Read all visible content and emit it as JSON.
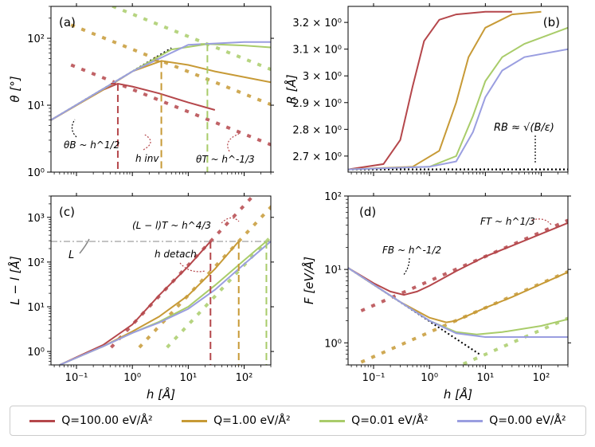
{
  "colors": {
    "q100": "#b5474b",
    "q1": "#c79a36",
    "q001": "#a9cc6a",
    "q0": "#9a9ee0"
  },
  "legend": [
    {
      "label": "Q=100.00 eV/Å²",
      "color": "#b5474b"
    },
    {
      "label": "Q=1.00 eV/Å²",
      "color": "#c79a36"
    },
    {
      "label": "Q=0.01 eV/Å²",
      "color": "#a9cc6a"
    },
    {
      "label": "Q=0.00 eV/Å²",
      "color": "#9a9ee0"
    }
  ],
  "shared": {
    "xlabel": "h [Å]"
  },
  "chart_data": [
    {
      "panel": "a",
      "type": "line",
      "label": "(a)",
      "xscale": "log",
      "yscale": "log",
      "xlim": [
        0.035,
        300
      ],
      "ylim": [
        1,
        300
      ],
      "ylabel": "θ [°]",
      "yticks": [
        "10⁰",
        "10¹",
        "10²"
      ],
      "annotations": [
        "θB ~ h^1/2",
        "h inv",
        "θT ~ h^-1/3"
      ],
      "series": [
        {
          "name": "Q=100.00",
          "x": [
            0.035,
            0.1,
            0.3,
            0.55,
            1,
            3,
            10,
            30
          ],
          "y": [
            6,
            10,
            17,
            21,
            19,
            15,
            11,
            8.5
          ]
        },
        {
          "name": "Q=1.00",
          "x": [
            0.035,
            0.3,
            1,
            3.3,
            10,
            30,
            300
          ],
          "y": [
            6,
            17,
            32,
            46,
            40,
            32,
            22
          ]
        },
        {
          "name": "Q=0.01",
          "x": [
            0.035,
            1,
            5,
            22,
            100,
            300
          ],
          "y": [
            6,
            32,
            68,
            82,
            78,
            73
          ]
        },
        {
          "name": "Q=0.00",
          "x": [
            0.035,
            1,
            10,
            100,
            300
          ],
          "y": [
            6,
            32,
            80,
            88,
            88
          ]
        }
      ],
      "dashed_markers_x": [
        0.55,
        3.3,
        22
      ]
    },
    {
      "panel": "b",
      "type": "line",
      "label": "(b)",
      "xscale": "log",
      "yscale": "linear",
      "xlim": [
        0.035,
        300
      ],
      "ylim": [
        2.64,
        3.26
      ],
      "ylabel": "R [Å]",
      "yticks": [
        "2.7 × 10⁰",
        "2.8 × 10⁰",
        "2.9 × 10⁰",
        "3 × 10⁰",
        "3.1 × 10⁰",
        "3.2 × 10⁰"
      ],
      "annotations": [
        "RB ≈ √(B/ε)"
      ],
      "series": [
        {
          "name": "Q=100.00",
          "x": [
            0.035,
            0.15,
            0.3,
            0.5,
            0.8,
            1.5,
            3,
            10,
            30
          ],
          "y": [
            2.65,
            2.67,
            2.76,
            2.96,
            3.13,
            3.21,
            3.23,
            3.24,
            3.24
          ]
        },
        {
          "name": "Q=1.00",
          "x": [
            0.035,
            0.5,
            1.5,
            3,
            5,
            10,
            30,
            100
          ],
          "y": [
            2.65,
            2.66,
            2.72,
            2.9,
            3.07,
            3.18,
            3.23,
            3.24
          ]
        },
        {
          "name": "Q=0.01",
          "x": [
            0.035,
            1,
            3,
            6,
            10,
            20,
            50,
            300
          ],
          "y": [
            2.65,
            2.66,
            2.7,
            2.85,
            2.98,
            3.07,
            3.12,
            3.18
          ]
        },
        {
          "name": "Q=0.00",
          "x": [
            0.035,
            1,
            3,
            6,
            10,
            20,
            50,
            300
          ],
          "y": [
            2.65,
            2.66,
            2.68,
            2.79,
            2.92,
            3.02,
            3.07,
            3.1
          ]
        }
      ]
    },
    {
      "panel": "c",
      "type": "line",
      "label": "(c)",
      "xscale": "log",
      "yscale": "log",
      "xlim": [
        0.035,
        300
      ],
      "ylim": [
        0.5,
        3000
      ],
      "ylabel": "L − l [Å]",
      "yticks": [
        "10⁰",
        "10¹",
        "10²",
        "10³"
      ],
      "annotations": [
        "(L − l)T ~ h^4/3",
        "h detach",
        "L"
      ],
      "series": [
        {
          "name": "Q=100.00",
          "x": [
            0.05,
            0.3,
            1,
            3,
            10,
            25
          ],
          "y": [
            0.5,
            1.4,
            4,
            18,
            80,
            290
          ]
        },
        {
          "name": "Q=1.00",
          "x": [
            0.05,
            0.3,
            1,
            3,
            10,
            30,
            80
          ],
          "y": [
            0.5,
            1.3,
            2.8,
            6,
            18,
            70,
            290
          ]
        },
        {
          "name": "Q=0.01",
          "x": [
            0.05,
            0.3,
            1,
            3,
            10,
            30,
            100,
            250
          ],
          "y": [
            0.5,
            1.3,
            2.6,
            4.6,
            10,
            30,
            110,
            290
          ]
        },
        {
          "name": "Q=0.00",
          "x": [
            0.05,
            0.3,
            1,
            3,
            10,
            30,
            100,
            300
          ],
          "y": [
            0.5,
            1.3,
            2.6,
            4.4,
            9,
            24,
            90,
            290
          ]
        }
      ],
      "hline_L": 290,
      "dashed_markers_x": [
        25,
        80,
        250
      ]
    },
    {
      "panel": "d",
      "type": "line",
      "label": "(d)",
      "xscale": "log",
      "yscale": "log",
      "xlim": [
        0.035,
        300
      ],
      "ylim": [
        0.5,
        100
      ],
      "ylabel": "F [eV/Å]",
      "yticks": [
        "10⁰",
        "10¹",
        "10²"
      ],
      "annotations": [
        "FT ~ h^1/3",
        "FB ~ h^-1/2"
      ],
      "series": [
        {
          "name": "Q=100.00",
          "x": [
            0.035,
            0.1,
            0.2,
            0.35,
            0.6,
            1,
            3,
            10,
            30,
            300
          ],
          "y": [
            10.5,
            6.5,
            5,
            4.5,
            5,
            6,
            9.5,
            15,
            21,
            43
          ]
        },
        {
          "name": "Q=1.00",
          "x": [
            0.035,
            0.1,
            0.3,
            1,
            2,
            3,
            10,
            30,
            300
          ],
          "y": [
            10.5,
            6.2,
            3.6,
            2.2,
            1.9,
            2,
            3,
            4.2,
            9.2
          ]
        },
        {
          "name": "Q=0.01",
          "x": [
            0.035,
            0.3,
            1,
            3,
            7,
            20,
            100,
            300
          ],
          "y": [
            10.5,
            3.6,
            2.0,
            1.4,
            1.3,
            1.4,
            1.7,
            2.1
          ]
        },
        {
          "name": "Q=0.00",
          "x": [
            0.035,
            0.3,
            1,
            3,
            10,
            30,
            300
          ],
          "y": [
            10.5,
            3.6,
            2.0,
            1.35,
            1.2,
            1.2,
            1.2
          ]
        }
      ]
    }
  ]
}
